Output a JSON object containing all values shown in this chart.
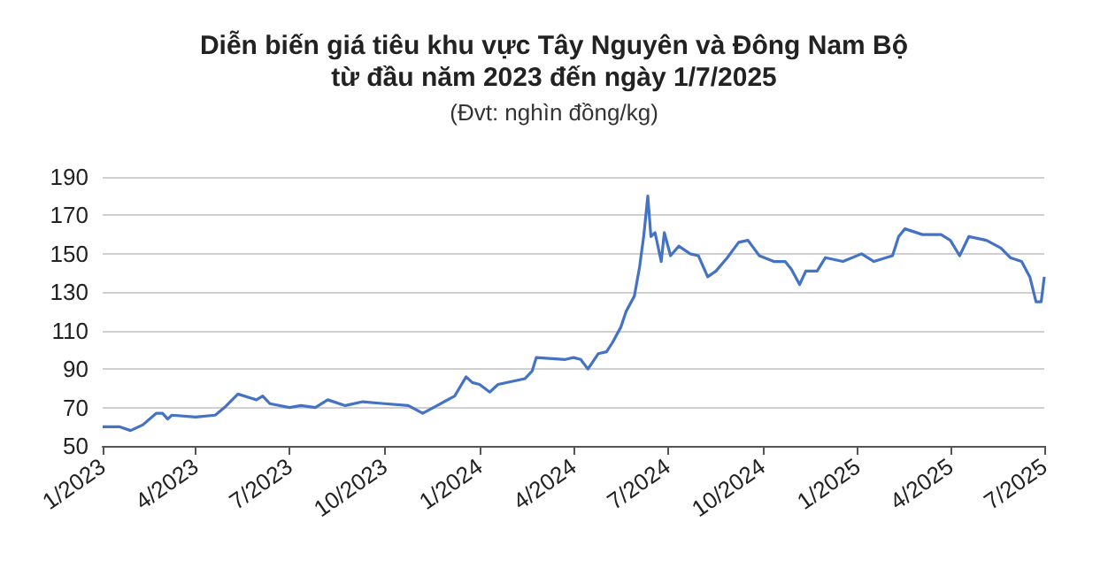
{
  "chart_data": {
    "type": "line",
    "title": "Diễn biến giá tiêu khu vực Tây Nguyên và Đông Nam Bộ\ntừ đầu năm 2023 đến ngày 1/7/2025",
    "subtitle": "(Đvt: nghìn đồng/kg)",
    "x": [
      "2023-01-01",
      "2023-01-17",
      "2023-01-28",
      "2023-02-09",
      "2023-02-22",
      "2023-02-28",
      "2023-03-05",
      "2023-03-09",
      "2023-04-01",
      "2023-04-20",
      "2023-04-29",
      "2023-05-12",
      "2023-05-24",
      "2023-05-30",
      "2023-06-05",
      "2023-06-12",
      "2023-07-01",
      "2023-07-12",
      "2023-07-26",
      "2023-08-07",
      "2023-08-24",
      "2023-09-10",
      "2023-10-01",
      "2023-10-24",
      "2023-11-07",
      "2023-11-21",
      "2023-12-08",
      "2023-12-19",
      "2023-12-25",
      "2024-01-01",
      "2024-01-11",
      "2024-01-19",
      "2024-02-14",
      "2024-02-21",
      "2024-02-25",
      "2024-03-24",
      "2024-04-01",
      "2024-04-08",
      "2024-04-15",
      "2024-04-25",
      "2024-05-03",
      "2024-05-09",
      "2024-05-17",
      "2024-05-22",
      "2024-05-30",
      "2024-06-04",
      "2024-06-08",
      "2024-06-12",
      "2024-06-15",
      "2024-06-19",
      "2024-06-25",
      "2024-06-28",
      "2024-07-04",
      "2024-07-12",
      "2024-07-23",
      "2024-07-31",
      "2024-08-09",
      "2024-08-17",
      "2024-08-28",
      "2024-09-08",
      "2024-09-17",
      "2024-09-28",
      "2024-10-12",
      "2024-10-23",
      "2024-10-29",
      "2024-11-06",
      "2024-11-12",
      "2024-11-23",
      "2024-12-01",
      "2024-12-18",
      "2025-01-05",
      "2025-01-17",
      "2025-02-04",
      "2025-02-10",
      "2025-02-16",
      "2025-03-05",
      "2025-03-23",
      "2025-04-01",
      "2025-04-10",
      "2025-04-19",
      "2025-05-06",
      "2025-05-20",
      "2025-05-29",
      "2025-06-09",
      "2025-06-17",
      "2025-06-23",
      "2025-06-28",
      "2025-07-01"
    ],
    "series": [
      {
        "color": "#4472c4",
        "values": [
          60,
          60,
          58,
          61,
          67,
          67,
          64,
          66,
          65,
          66,
          70,
          77,
          75,
          74,
          76,
          72,
          70,
          71,
          70,
          74,
          71,
          73,
          72,
          71,
          67,
          71,
          76,
          86,
          83,
          82,
          78,
          82,
          85,
          89,
          96,
          95,
          96,
          95,
          90,
          98,
          99,
          104,
          112,
          120,
          128,
          143,
          159,
          180,
          159,
          161,
          146,
          161,
          149,
          154,
          150,
          149,
          138,
          141,
          148,
          156,
          157,
          149,
          146,
          146,
          142,
          134,
          141,
          141,
          148,
          146,
          150,
          146,
          149,
          159,
          163,
          160,
          160,
          157,
          149,
          159,
          157,
          153,
          148,
          146,
          138,
          125,
          125,
          138
        ]
      }
    ],
    "xlim": [
      "2023-01-01",
      "2025-07-01"
    ],
    "xticks": [
      {
        "value": "2023-01-01",
        "label": "1/2023"
      },
      {
        "value": "2023-04-01",
        "label": "4/2023"
      },
      {
        "value": "2023-07-01",
        "label": "7/2023"
      },
      {
        "value": "2023-10-01",
        "label": "10/2023"
      },
      {
        "value": "2024-01-01",
        "label": "1/2024"
      },
      {
        "value": "2024-04-01",
        "label": "4/2024"
      },
      {
        "value": "2024-07-01",
        "label": "7/2024"
      },
      {
        "value": "2024-10-01",
        "label": "10/2024"
      },
      {
        "value": "2025-01-01",
        "label": "1/2025"
      },
      {
        "value": "2025-04-01",
        "label": "4/2025"
      },
      {
        "value": "2025-07-01",
        "label": "7/2025"
      }
    ],
    "ylim": [
      50,
      190
    ],
    "yticks": [
      50,
      70,
      90,
      110,
      130,
      150,
      170,
      190
    ],
    "grid": "y",
    "marker": "none",
    "line_style": "solid"
  }
}
